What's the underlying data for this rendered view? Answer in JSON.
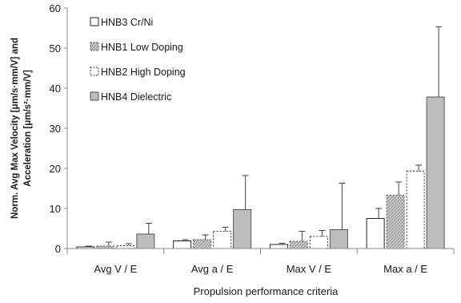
{
  "chart_data": {
    "type": "bar",
    "title": "",
    "xlabel": "Propulsion performance criteria",
    "ylabel": "Norm. Avg Max Velocity [μm/s·mm/V] and Acceleration [μm/s²·mm/V]",
    "ylabel_lines": [
      "Norm. Avg Max Velocity [μm/s·mm/V] and",
      "Acceleration [μm/s²·mm/V]"
    ],
    "ylim": [
      0,
      60
    ],
    "yticks": [
      0,
      10,
      20,
      30,
      40,
      50,
      60
    ],
    "grid": false,
    "legend_position": "top-left",
    "categories": [
      "Avg V / E",
      "Avg a / E",
      "Max V / E",
      "Max a / E"
    ],
    "series": [
      {
        "name": "HNB3 Cr/Ni",
        "values": [
          0.4,
          1.9,
          1.0,
          7.5
        ],
        "errors": [
          0.2,
          0.3,
          0.3,
          2.5
        ],
        "fill": "#ffffff",
        "stroke": "#222222",
        "dashed": false,
        "hatch": false
      },
      {
        "name": "HNB1 Low Doping",
        "values": [
          0.6,
          2.2,
          1.8,
          13.3
        ],
        "errors": [
          1.0,
          1.2,
          2.5,
          3.3
        ],
        "fill": "#c8c8c8",
        "stroke": "#555555",
        "dashed": true,
        "hatch": true
      },
      {
        "name": "HNB2 High Doping",
        "values": [
          0.7,
          4.3,
          3.0,
          19.3
        ],
        "errors": [
          0.5,
          1.0,
          1.5,
          1.5
        ],
        "fill": "#ffffff",
        "stroke": "#333333",
        "dashed": true,
        "hatch": false
      },
      {
        "name": "HNB4 Dielectric",
        "values": [
          3.6,
          9.7,
          4.7,
          37.8
        ],
        "errors": [
          2.7,
          8.5,
          11.6,
          17.5
        ],
        "fill": "#bdbdbd",
        "stroke": "#555555",
        "dashed": false,
        "hatch": false
      }
    ]
  }
}
